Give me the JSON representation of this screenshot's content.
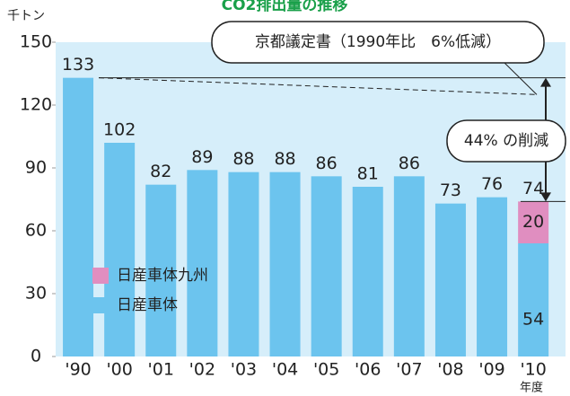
{
  "chart_data": {
    "type": "bar",
    "stacked": true,
    "title": "CO2排出量の推移",
    "y_label": "千トン",
    "x_label": "年度",
    "categories": [
      "'90",
      "'00",
      "'01",
      "'02",
      "'03",
      "'04",
      "'05",
      "'06",
      "'07",
      "'08",
      "'09",
      "'10"
    ],
    "series": [
      {
        "name": "日産車体",
        "color": "#6cc4ee",
        "values": [
          133,
          102,
          82,
          89,
          88,
          88,
          86,
          81,
          86,
          73,
          76,
          54
        ]
      },
      {
        "name": "日産車体九州",
        "color": "#e08ec0",
        "values": [
          null,
          null,
          null,
          null,
          null,
          null,
          null,
          null,
          null,
          null,
          null,
          20
        ]
      }
    ],
    "totals": [
      133,
      102,
      82,
      89,
      88,
      88,
      86,
      81,
      86,
      73,
      76,
      74
    ],
    "ylim": [
      0,
      150
    ],
    "yticks": [
      0,
      30,
      60,
      90,
      120,
      150
    ],
    "target_line": [
      133,
      125
    ],
    "annotations": [
      "京都議定書（1990年比　6%低減）",
      "44% の削減"
    ]
  }
}
